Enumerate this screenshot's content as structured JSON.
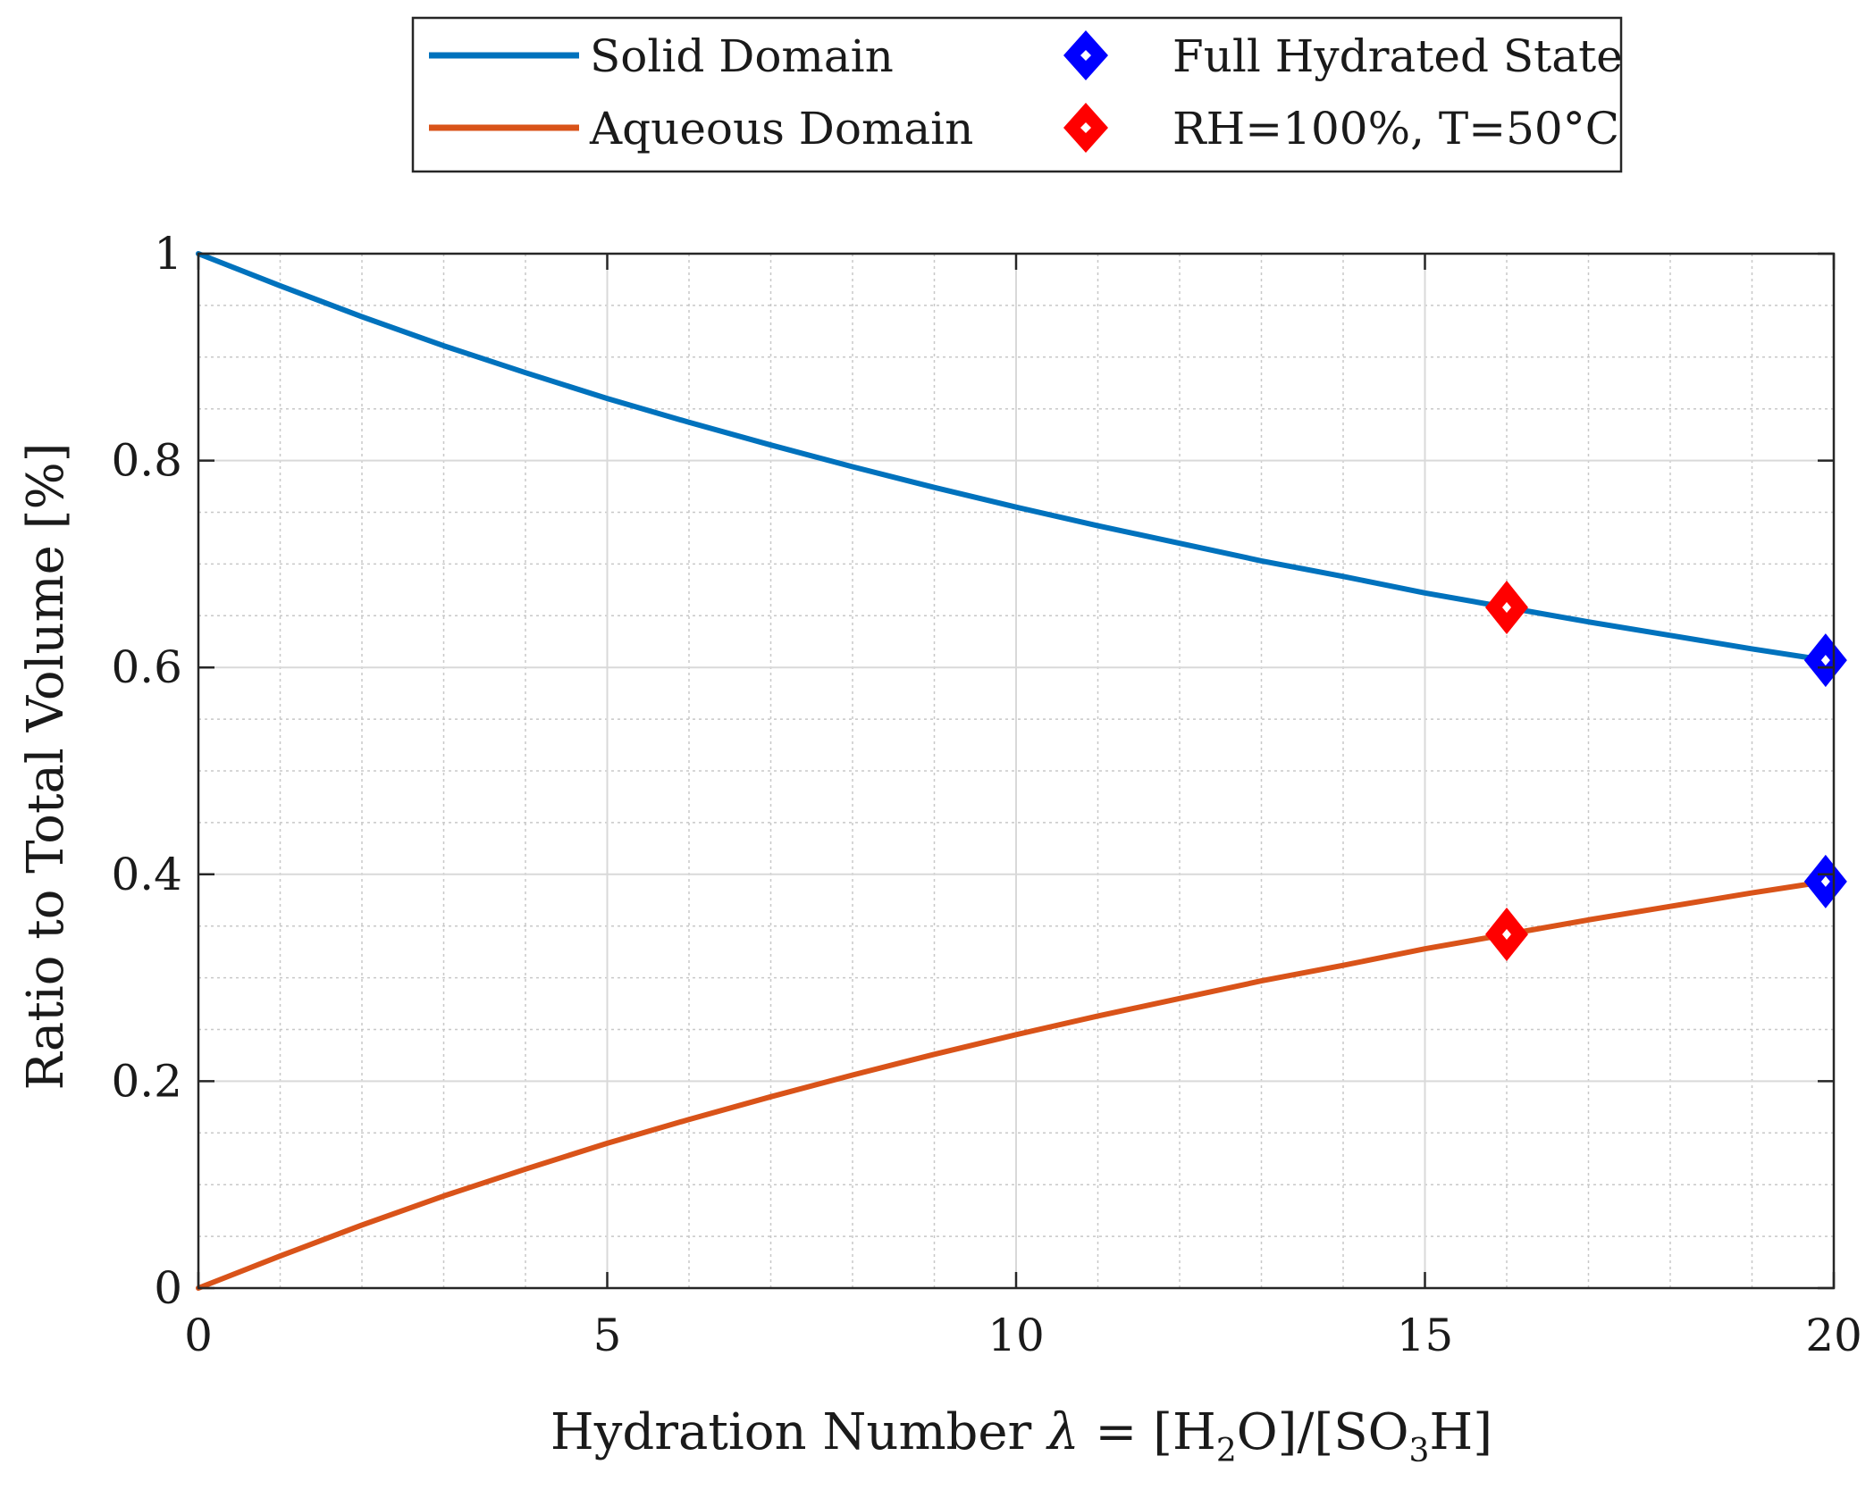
{
  "chart_data": {
    "type": "line",
    "title": "",
    "xlabel": {
      "prefix": "Hydration Number ",
      "symbol": "λ",
      "eq": " = [H",
      "sub1": "2",
      "mid": "O]/[SO",
      "sub2": "3",
      "suffix": "H]"
    },
    "ylabel": "Ratio to Total Volume [%]",
    "xlim": [
      0,
      20
    ],
    "ylim": [
      0,
      1
    ],
    "xticks": [
      0,
      5,
      10,
      15,
      20
    ],
    "yticks": [
      0,
      0.2,
      0.4,
      0.6,
      0.8,
      1
    ],
    "xtick_labels": [
      "0",
      "5",
      "10",
      "15",
      "20"
    ],
    "ytick_labels": [
      "0",
      "0.2",
      "0.4",
      "0.6",
      "0.8",
      "1"
    ],
    "grid": true,
    "minor_grid": true,
    "legend_position": "top",
    "series": [
      {
        "name": "Solid Domain",
        "color": "#0072BD",
        "x": [
          0,
          1,
          2,
          3,
          4,
          5,
          6,
          7,
          8,
          9,
          10,
          11,
          12,
          13,
          14,
          15,
          16,
          17,
          18,
          19,
          19.9
        ],
        "values": [
          1.0,
          0.969,
          0.939,
          0.911,
          0.885,
          0.86,
          0.837,
          0.815,
          0.794,
          0.774,
          0.755,
          0.737,
          0.72,
          0.703,
          0.688,
          0.672,
          0.658,
          0.644,
          0.631,
          0.618,
          0.607
        ]
      },
      {
        "name": "Aqueous Domain",
        "color": "#D95319",
        "x": [
          0,
          1,
          2,
          3,
          4,
          5,
          6,
          7,
          8,
          9,
          10,
          11,
          12,
          13,
          14,
          15,
          16,
          17,
          18,
          19,
          19.9
        ],
        "values": [
          0.0,
          0.031,
          0.061,
          0.089,
          0.115,
          0.14,
          0.163,
          0.185,
          0.206,
          0.226,
          0.245,
          0.263,
          0.28,
          0.297,
          0.312,
          0.328,
          0.342,
          0.356,
          0.369,
          0.382,
          0.393
        ]
      }
    ],
    "markers": [
      {
        "name": "Full Hydrated State",
        "color": "#0000FF",
        "points": [
          [
            19.9,
            0.607
          ],
          [
            19.9,
            0.393
          ]
        ]
      },
      {
        "name": "RH=100%, T=50°C",
        "color": "#FF0000",
        "points": [
          [
            16,
            0.658
          ],
          [
            16,
            0.342
          ]
        ]
      }
    ]
  }
}
